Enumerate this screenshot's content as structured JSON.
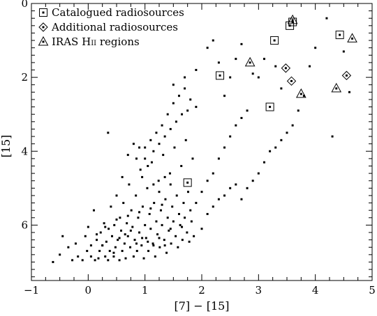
{
  "chart_data": {
    "type": "scatter",
    "xlabel": "[7] − [15]",
    "ylabel": "[15]",
    "xlim": [
      -1,
      5
    ],
    "ylim": [
      0,
      7.5
    ],
    "y_inverted": true,
    "x_ticks": [
      "−1",
      "0",
      "1",
      "2",
      "3",
      "4",
      "5"
    ],
    "y_ticks": [
      "0",
      "2",
      "4",
      "6"
    ],
    "legend_position": "top-left",
    "legend": [
      {
        "marker": "square",
        "label": "Catalogued radiosources"
      },
      {
        "marker": "diamond",
        "label": "Additional radiosources"
      },
      {
        "marker": "triangle",
        "label": "IRAS H",
        "label_sc": "ii",
        "label_tail": " regions"
      }
    ],
    "series": [
      {
        "marker": "small-square",
        "points": [
          [
            -0.62,
            7.0
          ],
          [
            -0.5,
            6.8
          ],
          [
            -0.45,
            6.3
          ],
          [
            -0.35,
            6.6
          ],
          [
            -0.28,
            6.95
          ],
          [
            -0.22,
            6.5
          ],
          [
            -0.18,
            6.85
          ],
          [
            -0.1,
            6.95
          ],
          [
            -0.05,
            6.3
          ],
          [
            -0.02,
            6.7
          ],
          [
            0.0,
            6.05
          ],
          [
            0.05,
            6.85
          ],
          [
            0.05,
            6.55
          ],
          [
            0.1,
            5.6
          ],
          [
            0.12,
            6.95
          ],
          [
            0.15,
            6.4
          ],
          [
            0.18,
            6.9
          ],
          [
            0.2,
            6.7
          ],
          [
            0.22,
            6.2
          ],
          [
            0.25,
            6.55
          ],
          [
            0.28,
            5.95
          ],
          [
            0.3,
            6.85
          ],
          [
            0.32,
            6.45
          ],
          [
            0.35,
            6.95
          ],
          [
            0.36,
            6.1
          ],
          [
            0.38,
            6.7
          ],
          [
            0.4,
            5.5
          ],
          [
            0.42,
            6.3
          ],
          [
            0.45,
            6.85
          ],
          [
            0.46,
            6.0
          ],
          [
            0.48,
            6.6
          ],
          [
            0.5,
            5.2
          ],
          [
            0.52,
            6.4
          ],
          [
            0.55,
            6.95
          ],
          [
            0.56,
            5.8
          ],
          [
            0.58,
            6.15
          ],
          [
            0.6,
            6.7
          ],
          [
            0.62,
            5.4
          ],
          [
            0.64,
            6.5
          ],
          [
            0.66,
            6.9
          ],
          [
            0.68,
            5.95
          ],
          [
            0.7,
            6.3
          ],
          [
            0.72,
            4.9
          ],
          [
            0.74,
            6.6
          ],
          [
            0.76,
            5.6
          ],
          [
            0.78,
            6.05
          ],
          [
            0.8,
            6.85
          ],
          [
            0.82,
            6.4
          ],
          [
            0.84,
            5.2
          ],
          [
            0.86,
            6.7
          ],
          [
            0.88,
            5.8
          ],
          [
            0.9,
            6.2
          ],
          [
            0.92,
            4.5
          ],
          [
            0.94,
            6.55
          ],
          [
            0.96,
            5.5
          ],
          [
            0.98,
            6.9
          ],
          [
            1.0,
            6.0
          ],
          [
            1.02,
            6.35
          ],
          [
            1.04,
            5.0
          ],
          [
            1.06,
            6.7
          ],
          [
            1.08,
            5.7
          ],
          [
            1.1,
            6.1
          ],
          [
            1.12,
            4.3
          ],
          [
            1.14,
            6.5
          ],
          [
            1.16,
            5.4
          ],
          [
            1.18,
            6.85
          ],
          [
            1.2,
            5.9
          ],
          [
            1.22,
            6.25
          ],
          [
            1.24,
            4.8
          ],
          [
            1.26,
            6.6
          ],
          [
            1.28,
            5.6
          ],
          [
            1.3,
            6.0
          ],
          [
            1.32,
            4.1
          ],
          [
            1.34,
            6.4
          ],
          [
            1.36,
            5.3
          ],
          [
            1.38,
            6.75
          ],
          [
            1.4,
            5.8
          ],
          [
            1.42,
            6.15
          ],
          [
            1.44,
            4.6
          ],
          [
            1.46,
            6.5
          ],
          [
            1.48,
            5.5
          ],
          [
            1.5,
            5.9
          ],
          [
            1.52,
            3.9
          ],
          [
            1.54,
            6.3
          ],
          [
            1.56,
            5.2
          ],
          [
            1.58,
            6.6
          ],
          [
            1.6,
            5.7
          ],
          [
            1.62,
            6.0
          ],
          [
            1.64,
            4.4
          ],
          [
            1.66,
            6.4
          ],
          [
            1.68,
            5.4
          ],
          [
            1.7,
            5.8
          ],
          [
            1.72,
            3.7
          ],
          [
            1.74,
            6.2
          ],
          [
            1.76,
            5.1
          ],
          [
            1.78,
            6.45
          ],
          [
            1.8,
            5.6
          ],
          [
            1.82,
            5.9
          ],
          [
            1.84,
            4.2
          ],
          [
            1.86,
            6.3
          ],
          [
            0.95,
            4.7
          ],
          [
            1.05,
            4.4
          ],
          [
            0.85,
            4.2
          ],
          [
            1.15,
            4.0
          ],
          [
            1.25,
            3.8
          ],
          [
            1.35,
            3.6
          ],
          [
            1.45,
            3.4
          ],
          [
            1.55,
            3.2
          ],
          [
            1.65,
            3.0
          ],
          [
            1.75,
            2.9
          ],
          [
            1.0,
            3.9
          ],
          [
            1.2,
            3.5
          ],
          [
            1.4,
            3.0
          ],
          [
            1.5,
            2.7
          ],
          [
            1.6,
            2.5
          ],
          [
            1.7,
            2.3
          ],
          [
            1.8,
            2.6
          ],
          [
            1.9,
            2.8
          ],
          [
            1.3,
            3.3
          ],
          [
            1.1,
            3.7
          ],
          [
            0.35,
            3.5
          ],
          [
            0.6,
            4.7
          ],
          [
            0.7,
            4.1
          ],
          [
            0.8,
            3.8
          ],
          [
            0.9,
            3.9
          ],
          [
            1.0,
            4.2
          ],
          [
            1.15,
            4.9
          ],
          [
            1.25,
            5.1
          ],
          [
            1.35,
            4.7
          ],
          [
            1.45,
            4.9
          ],
          [
            1.9,
            5.4
          ],
          [
            2.0,
            5.1
          ],
          [
            2.1,
            4.8
          ],
          [
            2.2,
            4.6
          ],
          [
            2.3,
            4.2
          ],
          [
            2.4,
            3.9
          ],
          [
            2.5,
            3.6
          ],
          [
            2.6,
            3.3
          ],
          [
            2.7,
            3.1
          ],
          [
            2.8,
            2.9
          ],
          [
            2.0,
            6.1
          ],
          [
            2.1,
            5.7
          ],
          [
            2.2,
            5.5
          ],
          [
            2.3,
            5.3
          ],
          [
            2.4,
            5.2
          ],
          [
            2.5,
            5.0
          ],
          [
            2.6,
            4.9
          ],
          [
            2.7,
            5.3
          ],
          [
            2.8,
            5.0
          ],
          [
            2.9,
            4.8
          ],
          [
            3.0,
            4.6
          ],
          [
            3.1,
            4.3
          ],
          [
            3.2,
            4.0
          ],
          [
            3.3,
            3.9
          ],
          [
            3.4,
            3.7
          ],
          [
            3.5,
            3.5
          ],
          [
            3.6,
            3.3
          ],
          [
            3.7,
            2.9
          ],
          [
            3.8,
            2.5
          ],
          [
            3.0,
            2.0
          ],
          [
            2.2,
            1.0
          ],
          [
            2.3,
            1.6
          ],
          [
            2.4,
            2.5
          ],
          [
            2.6,
            1.5
          ],
          [
            2.7,
            1.1
          ],
          [
            2.9,
            1.9
          ],
          [
            3.1,
            1.5
          ],
          [
            3.3,
            1.7
          ],
          [
            3.4,
            2.3
          ],
          [
            3.9,
            1.7
          ],
          [
            4.0,
            1.2
          ],
          [
            4.2,
            0.4
          ],
          [
            4.3,
            3.6
          ],
          [
            4.5,
            1.3
          ],
          [
            4.6,
            2.4
          ],
          [
            2.1,
            1.2
          ],
          [
            2.5,
            2.0
          ],
          [
            1.9,
            1.8
          ],
          [
            1.7,
            2.0
          ],
          [
            1.5,
            2.2
          ],
          [
            0.25,
            6.55
          ],
          [
            0.45,
            6.75
          ],
          [
            0.65,
            6.25
          ],
          [
            0.85,
            6.5
          ],
          [
            1.05,
            6.45
          ],
          [
            1.25,
            6.35
          ],
          [
            1.45,
            6.1
          ],
          [
            1.65,
            6.05
          ],
          [
            0.55,
            6.35
          ],
          [
            0.75,
            6.15
          ],
          [
            0.95,
            6.35
          ],
          [
            1.15,
            6.55
          ],
          [
            1.35,
            6.55
          ],
          [
            0.15,
            6.25
          ],
          [
            0.3,
            6.05
          ],
          [
            0.5,
            5.85
          ],
          [
            0.7,
            5.75
          ],
          [
            0.9,
            5.65
          ],
          [
            1.1,
            5.55
          ],
          [
            1.3,
            5.45
          ]
        ]
      },
      {
        "name": "Catalogued radiosources",
        "marker": "square",
        "points": [
          [
            2.32,
            1.95
          ],
          [
            3.28,
            1.0
          ],
          [
            3.55,
            0.6
          ],
          [
            3.6,
            0.5
          ],
          [
            4.43,
            0.85
          ],
          [
            3.2,
            2.8
          ],
          [
            1.75,
            4.85
          ]
        ]
      },
      {
        "name": "Additional radiosources",
        "marker": "diamond",
        "points": [
          [
            3.48,
            1.75
          ],
          [
            3.58,
            2.1
          ],
          [
            4.55,
            1.95
          ]
        ]
      },
      {
        "name": "IRAS H ii regions",
        "marker": "triangle",
        "points": [
          [
            3.6,
            0.45
          ],
          [
            4.65,
            0.95
          ],
          [
            2.85,
            1.6
          ],
          [
            4.37,
            2.3
          ],
          [
            3.75,
            2.45
          ]
        ]
      }
    ]
  }
}
